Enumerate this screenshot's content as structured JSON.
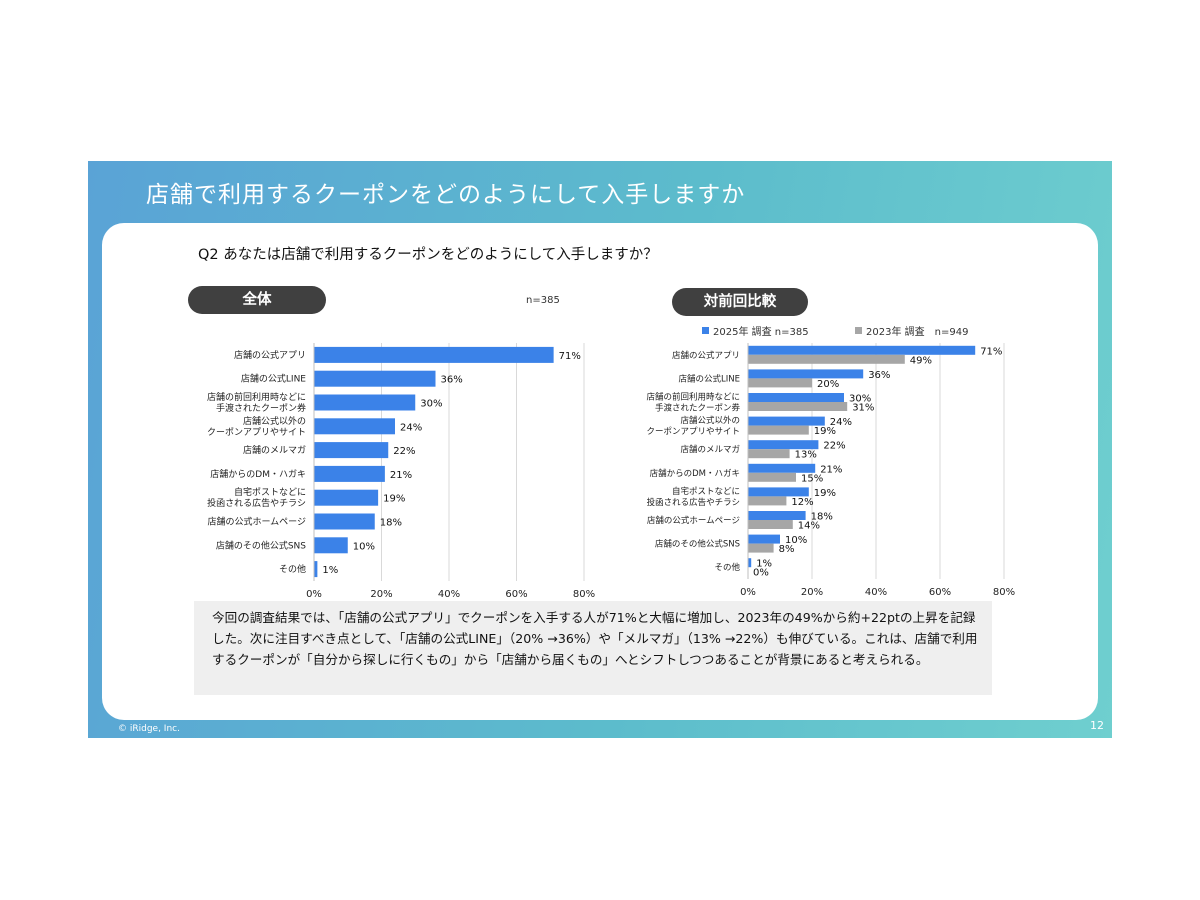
{
  "slide": {
    "title": "店舗で利用するクーポンをどのようにして入手しますか",
    "question": "Q2 あなたは店舗で利用するクーポンをどのようにして入手しますか？",
    "footer_copyright": "© iRidge, Inc.",
    "page_number": "12",
    "summary": "今回の調査結果では、「店舗の公式アプリ」でクーポンを入手する人が71%と大幅に増加し、2023年の49%から約+22ptの上昇を記録した。次に注目すべき点として、「店舗の公式LINE」（20% →36%）や「メルマガ」（13% →22%）も伸びている。これは、店舗で利用するクーポンが「自分から探しに行くもの」から「店舗から届くもの」へとシフトしつつあることが背景にあると考えられる。"
  },
  "left_panel": {
    "label": "全体",
    "n_label": "n=385"
  },
  "right_panel": {
    "label": "対前回比較"
  },
  "colors": {
    "blue": "#3b82e8",
    "gray": "#a6a6a6",
    "grid": "#d9d9d9"
  },
  "chart_data": [
    {
      "type": "bar",
      "orientation": "horizontal",
      "categories": [
        "店舗の公式アプリ",
        "店舗の公式LINE",
        "店舗の前回利用時などに\n手渡されたクーポン券",
        "店舗公式以外の\nクーポンアプリやサイト",
        "店舗のメルマガ",
        "店舗からのDM・ハガキ",
        "自宅ポストなどに\n投函される広告やチラシ",
        "店舗の公式ホームページ",
        "店舗のその他公式SNS",
        "その他"
      ],
      "series": [
        {
          "values": [
            71,
            36,
            30,
            24,
            22,
            21,
            19,
            18,
            10,
            1
          ]
        }
      ],
      "value_suffix": "%",
      "xlim": [
        0,
        80
      ],
      "x_ticks": [
        "0%",
        "20%",
        "40%",
        "60%",
        "80%"
      ],
      "grid": "vertical"
    },
    {
      "type": "bar",
      "orientation": "horizontal",
      "categories": [
        "店舗の公式アプリ",
        "店舗の公式LINE",
        "店舗の前回利用時などに\n手渡されたクーポン券",
        "店舗公式以外の\nクーポンアプリやサイト",
        "店舗のメルマガ",
        "店舗からのDM・ハガキ",
        "自宅ポストなどに\n投函される広告やチラシ",
        "店舗の公式ホームページ",
        "店舗のその他公式SNS",
        "その他"
      ],
      "series": [
        {
          "name": "2025年 調査 n=385",
          "values": [
            71,
            36,
            30,
            24,
            22,
            21,
            19,
            18,
            10,
            1
          ]
        },
        {
          "name": "2023年 調査　n=949",
          "values": [
            49,
            20,
            31,
            19,
            13,
            15,
            12,
            14,
            8,
            0
          ]
        }
      ],
      "value_suffix": "%",
      "xlim": [
        0,
        80
      ],
      "x_ticks": [
        "0%",
        "20%",
        "40%",
        "60%",
        "80%"
      ],
      "legend": "top",
      "grid": "vertical"
    }
  ]
}
